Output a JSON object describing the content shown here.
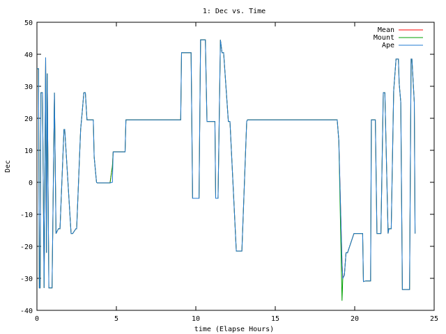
{
  "chart_data": {
    "type": "line",
    "title": "1: Dec vs. Time",
    "xlabel": "time (Elapse Hours)",
    "ylabel": "Dec",
    "xlim": [
      0,
      25
    ],
    "ylim": [
      -40,
      50
    ],
    "xticks": [
      0,
      5,
      10,
      15,
      20,
      25
    ],
    "yticks": [
      -40,
      -30,
      -20,
      -10,
      0,
      10,
      20,
      30,
      40,
      50
    ],
    "grid": false,
    "legend_position": "top-right",
    "series": [
      {
        "name": "Mean",
        "color": "#ff0000",
        "x": [
          0,
          0.1,
          0.15,
          0.2,
          0.25,
          0.35,
          0.45,
          0.55,
          0.6,
          0.65,
          0.75,
          0.95,
          1.1,
          1.2,
          1.35,
          1.45,
          1.7,
          1.75,
          2.15,
          2.25,
          2.45,
          2.5,
          2.75,
          2.85,
          2.95,
          3.05,
          3.15,
          3.55,
          3.6,
          3.75,
          3.8,
          4.6,
          4.75,
          4.8,
          5.05,
          5.1,
          5.55,
          5.6,
          8.6,
          8.8,
          9.05,
          9.1,
          9.4,
          9.5,
          9.7,
          9.8,
          10.2,
          10.3,
          10.6,
          10.7,
          11.2,
          11.25,
          11.35,
          11.4,
          11.55,
          11.65,
          11.75,
          12.05,
          12.15,
          12.55,
          12.6,
          12.85,
          12.9,
          13.2,
          13.25,
          16.0,
          18.2,
          18.9,
          19.0,
          19.2,
          19.25,
          19.35,
          19.45,
          19.55,
          19.95,
          20.0,
          20.5,
          20.55,
          20.7,
          21.0,
          21.05,
          21.3,
          21.4,
          21.6,
          21.65,
          21.8,
          21.9,
          22.1,
          22.15,
          22.3,
          22.45,
          22.6,
          22.75,
          22.8,
          22.9,
          23.0,
          23.05,
          23.15,
          23.4,
          23.45,
          23.55,
          23.6,
          23.75,
          23.8
        ],
        "y": [
          35.5,
          35.5,
          -33,
          -33,
          28,
          28,
          -33,
          39,
          -22,
          34,
          -33,
          -33,
          28,
          -16,
          -14.5,
          -14.5,
          16.5,
          16.5,
          -16,
          -16,
          -14.5,
          -14.5,
          16.5,
          22,
          28,
          28,
          19.5,
          19.5,
          8,
          0,
          -0.2,
          -0.2,
          5,
          9.5,
          9.5,
          9.5,
          9.5,
          19.5,
          19.5,
          19.5,
          19.5,
          40.5,
          40.5,
          40.5,
          40.5,
          -5,
          -5,
          44.5,
          44.5,
          19,
          19,
          -5,
          -5,
          -5,
          44.5,
          40.5,
          40.5,
          19,
          19,
          -21.5,
          -21.5,
          -21.5,
          -21.5,
          19,
          19.5,
          19.5,
          19.5,
          19.5,
          13,
          -25,
          -30,
          -29,
          -22,
          -22,
          -16,
          -16,
          -16,
          -31,
          -30.8,
          -30.8,
          19.5,
          19.5,
          -16,
          -16,
          -16,
          28,
          28,
          -16,
          -14.5,
          -14.5,
          28.5,
          38.5,
          38.5,
          31,
          25,
          -33.5,
          -33.5,
          -33.5,
          -33.5,
          -33.5,
          38.5,
          38.5,
          25,
          -16
        ]
      },
      {
        "name": "Mount",
        "color": "#00a000",
        "x": [
          0,
          0.1,
          0.15,
          0.2,
          0.25,
          0.35,
          0.45,
          0.55,
          0.6,
          0.65,
          0.75,
          0.95,
          1.1,
          1.2,
          1.35,
          1.45,
          1.7,
          1.75,
          2.15,
          2.25,
          2.45,
          2.5,
          2.75,
          2.85,
          2.95,
          3.05,
          3.15,
          3.55,
          3.6,
          3.75,
          3.8,
          4.6,
          4.75,
          4.8,
          5.05,
          5.1,
          5.55,
          5.6,
          8.6,
          8.8,
          9.05,
          9.1,
          9.4,
          9.5,
          9.7,
          9.8,
          10.2,
          10.3,
          10.6,
          10.7,
          11.2,
          11.25,
          11.35,
          11.4,
          11.55,
          11.65,
          11.75,
          12.05,
          12.15,
          12.55,
          12.6,
          12.85,
          12.9,
          13.2,
          13.25,
          16.0,
          18.2,
          18.9,
          19.0,
          19.2,
          19.25,
          19.35,
          19.45,
          19.55,
          19.95,
          20.0,
          20.5,
          20.55,
          20.7,
          21.0,
          21.05,
          21.3,
          21.4,
          21.6,
          21.65,
          21.8,
          21.9,
          22.1,
          22.15,
          22.3,
          22.45,
          22.6,
          22.75,
          22.8,
          22.9,
          23.0,
          23.05,
          23.15,
          23.4,
          23.45,
          23.55,
          23.6,
          23.75,
          23.8
        ],
        "y": [
          35.5,
          35.5,
          -33,
          -33,
          28,
          28,
          -33,
          39,
          -22,
          34,
          -33,
          -33,
          28,
          -16,
          -14.5,
          -14.5,
          16.5,
          16.5,
          -16,
          -16,
          -14.5,
          -14.5,
          16.5,
          22,
          28,
          28,
          19.5,
          19.5,
          8,
          0,
          -0.2,
          -0.2,
          5,
          9.5,
          9.5,
          9.5,
          9.5,
          19.5,
          19.5,
          19.5,
          19.5,
          40.5,
          40.5,
          40.5,
          40.5,
          -5,
          -5,
          44.5,
          44.5,
          19,
          19,
          -5,
          -5,
          -5,
          44.5,
          40.5,
          40.5,
          19,
          19,
          -21.5,
          -21.5,
          -21.5,
          -21.5,
          19,
          19.5,
          19.5,
          19.5,
          19.5,
          13,
          -37,
          -30,
          -29,
          -22,
          -22,
          -16,
          -16,
          -16,
          -31,
          -30.8,
          -30.8,
          19.5,
          19.5,
          -16,
          -16,
          -16,
          28,
          28,
          -16,
          -14.5,
          -14.5,
          28.5,
          38.5,
          38.5,
          31,
          25,
          -33.5,
          -33.5,
          -33.5,
          -33.5,
          -33.5,
          38.5,
          38.5,
          25,
          -16
        ]
      },
      {
        "name": "Ape",
        "color": "#1f78d0",
        "x": [
          0,
          0.1,
          0.15,
          0.2,
          0.25,
          0.35,
          0.45,
          0.55,
          0.6,
          0.65,
          0.75,
          0.95,
          1.1,
          1.2,
          1.35,
          1.45,
          1.7,
          1.75,
          2.15,
          2.25,
          2.45,
          2.5,
          2.75,
          2.85,
          2.95,
          3.05,
          3.15,
          3.55,
          3.6,
          3.75,
          3.8,
          4.6,
          4.75,
          4.8,
          5.05,
          5.1,
          5.55,
          5.6,
          8.6,
          8.8,
          9.05,
          9.1,
          9.4,
          9.5,
          9.7,
          9.8,
          10.2,
          10.3,
          10.6,
          10.7,
          11.2,
          11.25,
          11.35,
          11.4,
          11.55,
          11.65,
          11.75,
          12.05,
          12.15,
          12.55,
          12.6,
          12.85,
          12.9,
          13.2,
          13.25,
          16.0,
          18.2,
          18.9,
          19.0,
          19.2,
          19.25,
          19.35,
          19.45,
          19.55,
          19.95,
          20.0,
          20.5,
          20.55,
          20.7,
          21.0,
          21.05,
          21.3,
          21.4,
          21.6,
          21.65,
          21.8,
          21.9,
          22.1,
          22.15,
          22.3,
          22.45,
          22.6,
          22.75,
          22.8,
          22.9,
          23.0,
          23.05,
          23.15,
          23.4,
          23.45,
          23.55,
          23.6,
          23.75,
          23.8
        ],
        "y": [
          35.5,
          35.5,
          -33,
          -33,
          28,
          28,
          -33,
          39,
          -22,
          34,
          -33,
          -33,
          28,
          -16,
          -14.5,
          -14.5,
          16.5,
          16.5,
          -16,
          -16,
          -14.5,
          -14.5,
          16.5,
          22,
          28,
          28,
          19.5,
          19.5,
          8,
          0,
          -0.2,
          -0.2,
          0,
          9.5,
          9.5,
          9.5,
          9.5,
          19.5,
          19.5,
          19.5,
          19.5,
          40.5,
          40.5,
          40.5,
          40.5,
          -5,
          -5,
          44.5,
          44.5,
          19,
          19,
          -5,
          -5,
          -5,
          44.5,
          40.5,
          40.5,
          19,
          19,
          -21.5,
          -21.5,
          -21.5,
          -21.5,
          19,
          19.5,
          19.5,
          19.5,
          19.5,
          13,
          -25,
          -30,
          -29,
          -22,
          -22,
          -16,
          -16,
          -16,
          -31,
          -30.8,
          -30.8,
          19.5,
          19.5,
          -16,
          -16,
          -16,
          28,
          28,
          -16,
          -14.5,
          -14.5,
          28.5,
          38.5,
          38.5,
          31,
          25,
          -33.5,
          -33.5,
          -33.5,
          -33.5,
          -33.5,
          38.5,
          38.5,
          25,
          -16
        ]
      }
    ]
  }
}
